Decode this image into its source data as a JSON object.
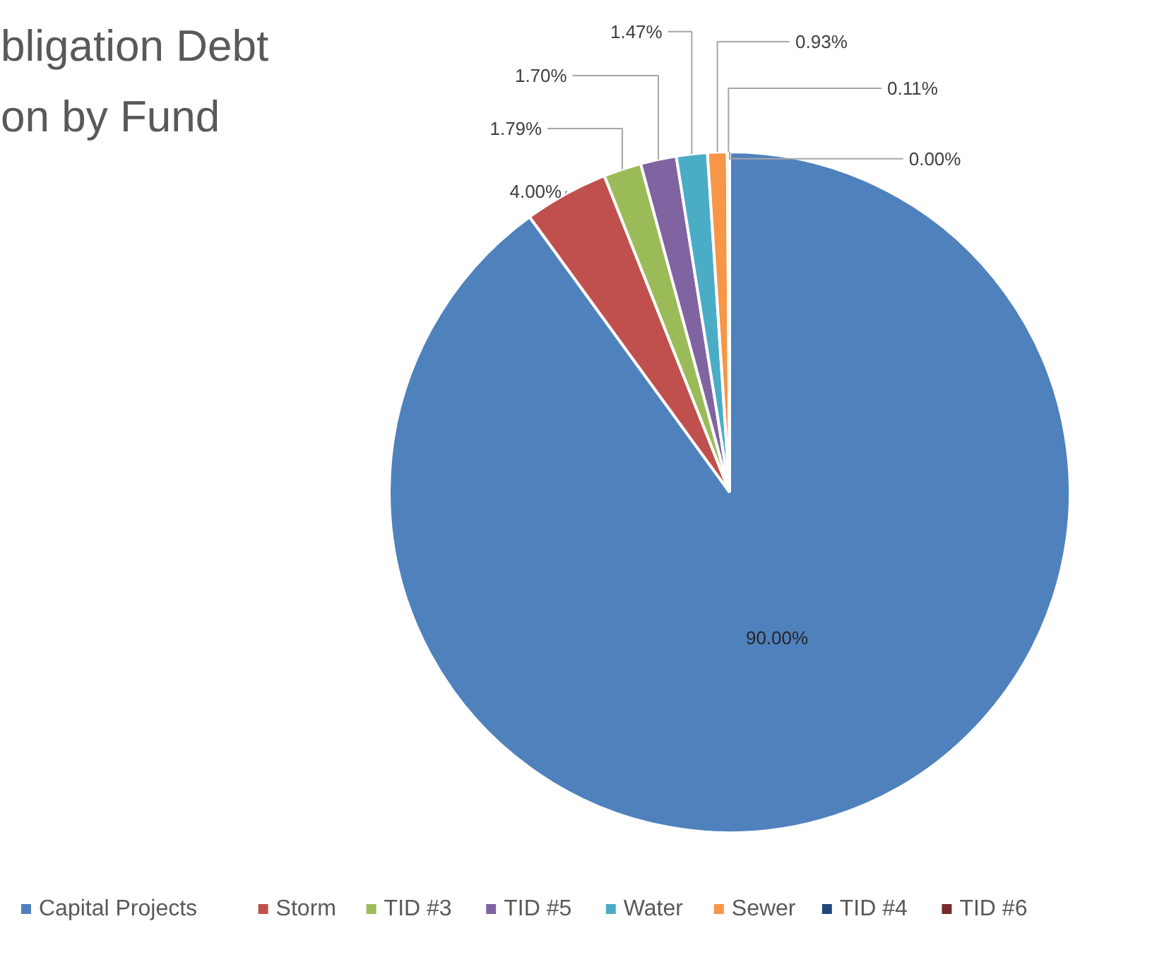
{
  "chart_data": {
    "type": "pie",
    "title": "bligation Debt\non by Fund",
    "categories": [
      "Capital Projects",
      "Storm",
      "TID #3",
      "TID #5",
      "Water",
      "Sewer",
      "TID #4",
      "TID #6"
    ],
    "values": [
      90.0,
      4.0,
      1.79,
      1.7,
      1.47,
      0.93,
      0.11,
      0.0
    ],
    "colors": [
      "#4f81bd",
      "#c0504d",
      "#9bbb59",
      "#8064a2",
      "#4bacc6",
      "#f79646",
      "#1f497d",
      "#772c2a"
    ],
    "value_labels": [
      "90.00%",
      "4.00%",
      "1.79%",
      "1.70%",
      "1.47%",
      "0.93%",
      "0.11%",
      "0.00%"
    ],
    "legend": "bottom"
  }
}
